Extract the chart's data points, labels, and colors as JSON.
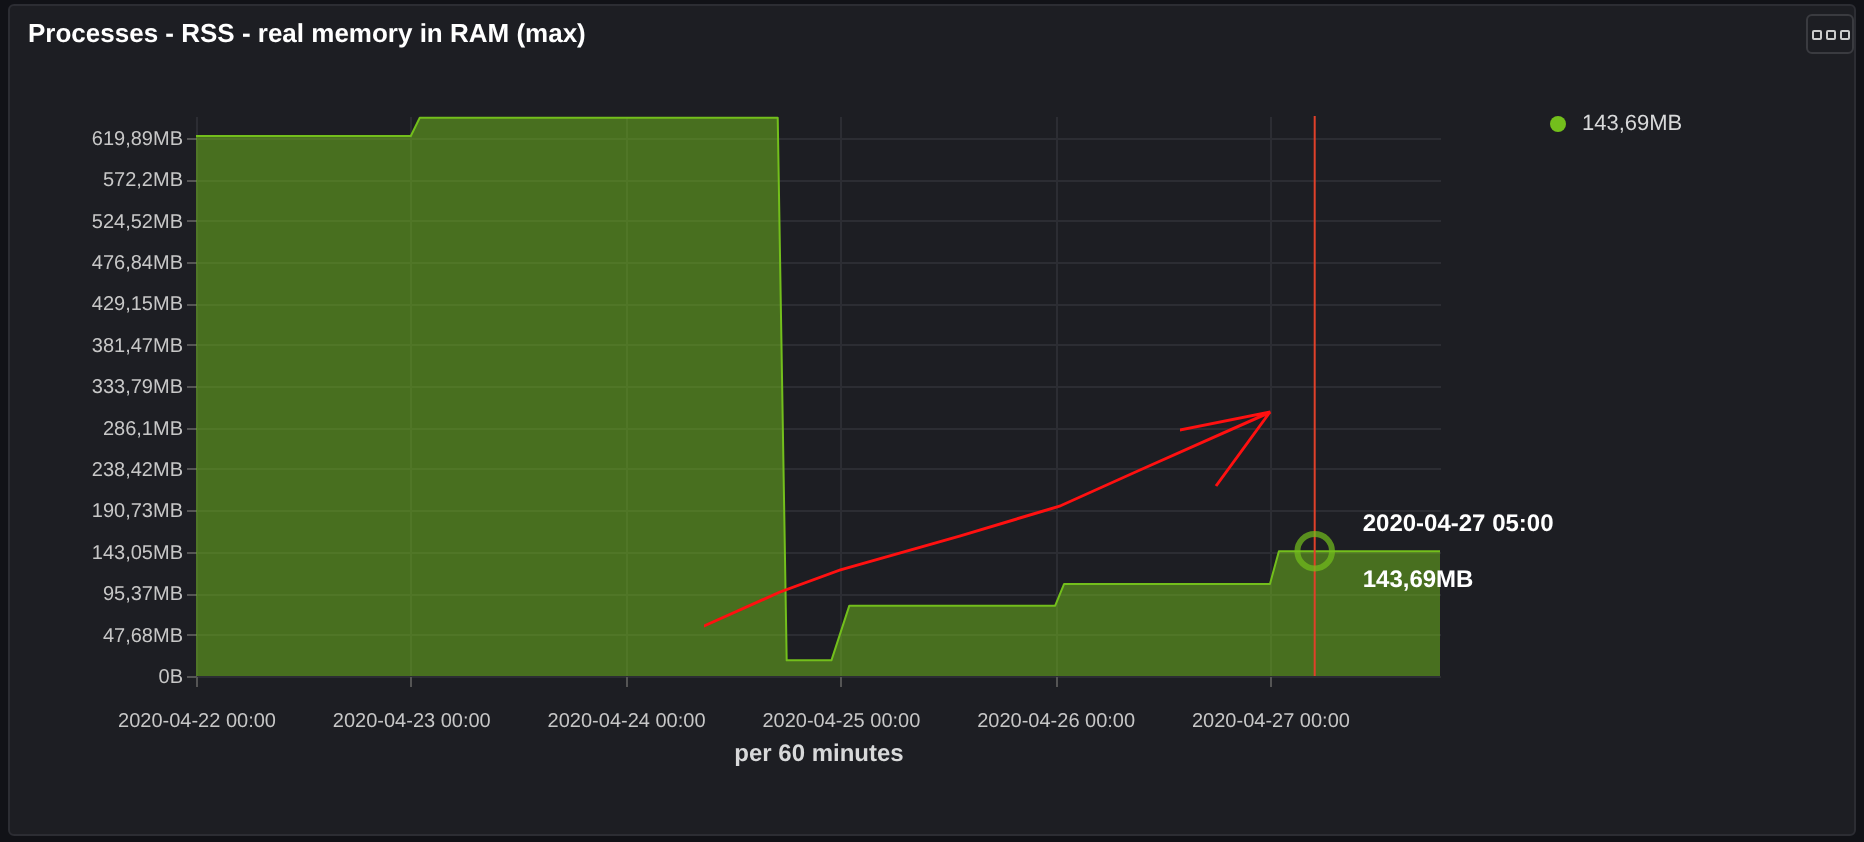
{
  "chart_data": {
    "type": "area",
    "title": "Processes - RSS - real memory in RAM (max)",
    "xlabel": "per 60 minutes",
    "x": [
      "2020-04-22T00:00",
      "2020-04-23T00:00",
      "2020-04-23T01:00",
      "2020-04-24T17:00",
      "2020-04-24T18:00",
      "2020-04-24T23:00",
      "2020-04-25T01:00",
      "2020-04-26T00:00",
      "2020-04-26T01:00",
      "2020-04-27T00:00",
      "2020-04-27T01:00",
      "2020-04-27T19:00"
    ],
    "series": [
      {
        "color": "#73bf1c",
        "values": [
          622,
          622,
          643,
          643,
          18,
          18,
          81,
          81,
          106,
          106,
          143.69,
          143.69
        ]
      }
    ],
    "xlim": [
      "2020-04-22T00:00",
      "2020-04-27T19:00"
    ],
    "xticks": [
      {
        "value": "2020-04-22T00:00",
        "label": "2020-04-22 00:00"
      },
      {
        "value": "2020-04-23T00:00",
        "label": "2020-04-23 00:00"
      },
      {
        "value": "2020-04-24T00:00",
        "label": "2020-04-24 00:00"
      },
      {
        "value": "2020-04-25T00:00",
        "label": "2020-04-25 00:00"
      },
      {
        "value": "2020-04-26T00:00",
        "label": "2020-04-26 00:00"
      },
      {
        "value": "2020-04-27T00:00",
        "label": "2020-04-27 00:00"
      }
    ],
    "ylim": [
      0,
      645
    ],
    "yticks": [
      {
        "value": 0,
        "label": "0B"
      },
      {
        "value": 47.68,
        "label": "47,68MB"
      },
      {
        "value": 95.37,
        "label": "95,37MB"
      },
      {
        "value": 143.05,
        "label": "143,05MB"
      },
      {
        "value": 190.73,
        "label": "190,73MB"
      },
      {
        "value": 238.42,
        "label": "238,42MB"
      },
      {
        "value": 286.1,
        "label": "286,1MB"
      },
      {
        "value": 333.79,
        "label": "333,79MB"
      },
      {
        "value": 381.47,
        "label": "381,47MB"
      },
      {
        "value": 429.15,
        "label": "429,15MB"
      },
      {
        "value": 476.84,
        "label": "476,84MB"
      },
      {
        "value": 524.52,
        "label": "524,52MB"
      },
      {
        "value": 572.2,
        "label": "572,2MB"
      },
      {
        "value": 619.89,
        "label": "619,89MB"
      }
    ],
    "grid": true,
    "ref_lines": [
      {
        "axis": "x",
        "value": "2020-04-27T05:00",
        "color": "#e0402a"
      }
    ],
    "annotations": [
      "143,69MB",
      {
        "text": "2020-04-27 05:00",
        "x": "2020-04-27T05:00",
        "y": 143.69
      },
      {
        "text": "143,69MB",
        "x": "2020-04-27T05:00",
        "y": 143.69
      }
    ]
  }
}
